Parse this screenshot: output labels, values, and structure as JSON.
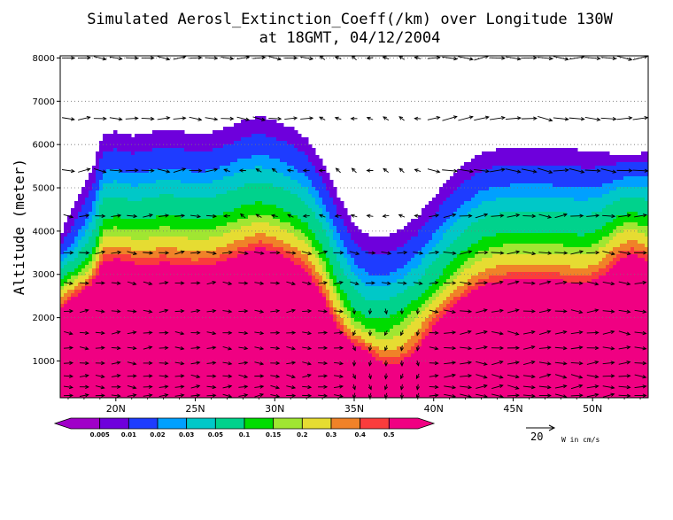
{
  "chart_data": {
    "type": "heatmap",
    "title_line1": "Simulated Aerosl_Extinction_Coeff(/km) over Longitude 130W",
    "title_line2": "at 18GMT, 04/12/2004",
    "xlabel": "",
    "ylabel": "Altitude (meter)",
    "xlim": [
      16.5,
      53.5
    ],
    "ylim": [
      150,
      8050
    ],
    "x_ticks": [
      {
        "value": 20,
        "label": "20N"
      },
      {
        "value": 25,
        "label": "25N"
      },
      {
        "value": 30,
        "label": "30N"
      },
      {
        "value": 35,
        "label": "35N"
      },
      {
        "value": 40,
        "label": "40N"
      },
      {
        "value": 45,
        "label": "45N"
      },
      {
        "value": 50,
        "label": "50N"
      }
    ],
    "y_ticks": [
      {
        "value": 1000,
        "label": "1000"
      },
      {
        "value": 2000,
        "label": "2000"
      },
      {
        "value": 3000,
        "label": "3000"
      },
      {
        "value": 4000,
        "label": "4000"
      },
      {
        "value": 5000,
        "label": "5000"
      },
      {
        "value": 6000,
        "label": "6000"
      },
      {
        "value": 7000,
        "label": "7000"
      },
      {
        "value": 8000,
        "label": "8000"
      }
    ],
    "grid_lines_y": [
      1000,
      2000,
      3000,
      4000,
      5000,
      6000,
      7000,
      8000
    ],
    "contour_levels": [
      "0.005",
      "0.01",
      "0.02",
      "0.03",
      "0.05",
      "0.1",
      "0.15",
      "0.2",
      "0.3",
      "0.4",
      "0.5"
    ],
    "level_colors": [
      "#a000c8",
      "#6e00dc",
      "#1e3cff",
      "#00a0ff",
      "#00c8c8",
      "#00d28c",
      "#00dc00",
      "#a0e632",
      "#e6dc32",
      "#f08228",
      "#fa3c3c",
      "#f00082"
    ],
    "top_profile": [
      {
        "x": 16.5,
        "y": 3900
      },
      {
        "x": 17.5,
        "y": 4700
      },
      {
        "x": 18.5,
        "y": 5400
      },
      {
        "x": 19.2,
        "y": 6250
      },
      {
        "x": 20,
        "y": 6300
      },
      {
        "x": 21,
        "y": 6200
      },
      {
        "x": 22,
        "y": 6250
      },
      {
        "x": 23,
        "y": 6350
      },
      {
        "x": 24,
        "y": 6300
      },
      {
        "x": 25,
        "y": 6250
      },
      {
        "x": 26,
        "y": 6280
      },
      {
        "x": 27,
        "y": 6400
      },
      {
        "x": 28,
        "y": 6550
      },
      {
        "x": 29,
        "y": 6650
      },
      {
        "x": 30,
        "y": 6550
      },
      {
        "x": 31,
        "y": 6400
      },
      {
        "x": 32,
        "y": 6150
      },
      {
        "x": 33,
        "y": 5600
      },
      {
        "x": 34,
        "y": 4800
      },
      {
        "x": 35,
        "y": 4150
      },
      {
        "x": 36,
        "y": 3850
      },
      {
        "x": 37,
        "y": 3850
      },
      {
        "x": 38,
        "y": 4050
      },
      {
        "x": 39,
        "y": 4350
      },
      {
        "x": 40,
        "y": 4800
      },
      {
        "x": 41,
        "y": 5200
      },
      {
        "x": 42,
        "y": 5550
      },
      {
        "x": 43,
        "y": 5800
      },
      {
        "x": 44,
        "y": 5900
      },
      {
        "x": 45,
        "y": 5950
      },
      {
        "x": 46,
        "y": 5950
      },
      {
        "x": 47,
        "y": 5950
      },
      {
        "x": 48,
        "y": 5930
      },
      {
        "x": 49,
        "y": 5880
      },
      {
        "x": 50,
        "y": 5850
      },
      {
        "x": 51,
        "y": 5800
      },
      {
        "x": 52,
        "y": 5750
      },
      {
        "x": 53,
        "y": 5800
      },
      {
        "x": 53.5,
        "y": 5900
      }
    ],
    "wind_arrow_rows_m": [
      8000,
      6600,
      5400,
      4350,
      3500,
      2800,
      2150,
      1650,
      1300,
      950,
      650,
      400,
      200
    ],
    "wind_reference": {
      "value": "20",
      "units": "W in cm/s"
    }
  }
}
